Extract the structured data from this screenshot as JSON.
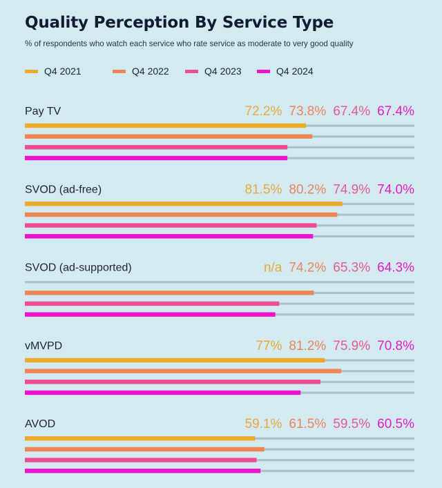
{
  "chart_data": {
    "type": "bar",
    "orientation": "horizontal",
    "title": "Quality Perception By Service Type",
    "subtitle": "% of respondents who watch each service who rate service as moderate to very good quality",
    "xlabel": "",
    "ylabel": "",
    "xlim": [
      0,
      100
    ],
    "grid": false,
    "legend_position": "top-left",
    "categories": [
      "Pay TV",
      "SVOD (ad-free)",
      "SVOD (ad-supported)",
      "vMVPD",
      "AVOD"
    ],
    "series": [
      {
        "name": "Q4 2021",
        "color": "#EDA92A",
        "values": [
          72.2,
          81.5,
          null,
          77,
          59.1
        ],
        "labels": [
          "72.2%",
          "81.5%",
          "n/a",
          "77%",
          "59.1%"
        ]
      },
      {
        "name": "Q4 2022",
        "color": "#EE8653",
        "values": [
          73.8,
          80.2,
          74.2,
          81.2,
          61.5
        ],
        "labels": [
          "73.8%",
          "80.2%",
          "74.2%",
          "81.2%",
          "61.5%"
        ]
      },
      {
        "name": "Q4 2023",
        "color": "#EE4E8F",
        "values": [
          67.4,
          74.9,
          65.3,
          75.9,
          59.5
        ],
        "labels": [
          "67.4%",
          "74.9%",
          "65.3%",
          "75.9%",
          "59.5%"
        ]
      },
      {
        "name": "Q4 2024",
        "color": "#EE12CF",
        "values": [
          67.4,
          74.0,
          64.3,
          70.8,
          60.5
        ],
        "labels": [
          "67.4%",
          "74.0%",
          "64.3%",
          "70.8%",
          "60.5%"
        ]
      }
    ]
  },
  "colors": {
    "background": "#D3EAF1",
    "track": "#A9C3CB",
    "text": "#1C2633",
    "title": "#0F1D33",
    "label_colors": [
      "#E6A93E",
      "#E8855C",
      "#E65A8E",
      "#E41DC6"
    ]
  }
}
